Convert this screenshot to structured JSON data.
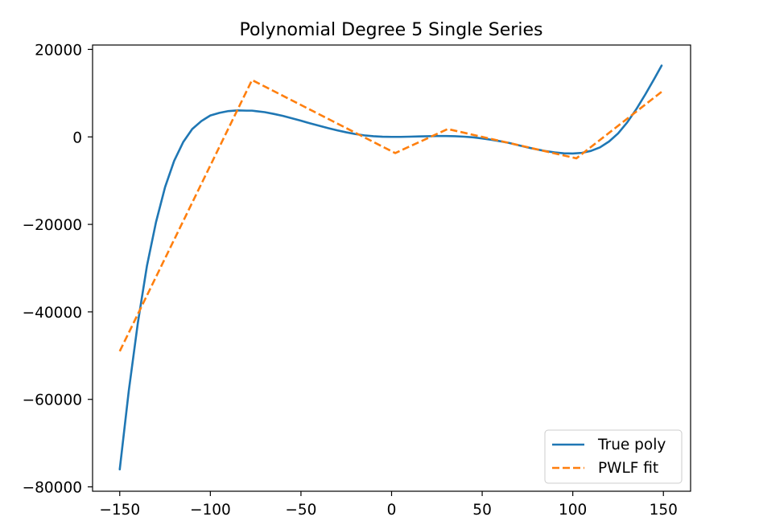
{
  "chart_data": {
    "type": "line",
    "title": "Polynomial Degree 5 Single Series",
    "xlabel": "",
    "ylabel": "",
    "xlim": [
      -165,
      165
    ],
    "ylim": [
      -81000,
      21000
    ],
    "xticks": [
      -150,
      -100,
      -50,
      0,
      50,
      100,
      150
    ],
    "xtick_labels": [
      "−150",
      "−100",
      "−50",
      "0",
      "50",
      "100",
      "150"
    ],
    "yticks": [
      20000,
      0,
      -20000,
      -40000,
      -60000,
      -80000
    ],
    "ytick_labels": [
      "20000",
      "0",
      "−20000",
      "−40000",
      "−60000",
      "−80000"
    ],
    "grid": false,
    "legend_position": "lower-right",
    "series": [
      {
        "name": "True poly",
        "color": "#1f77b4",
        "style": "solid",
        "x": [
          -150,
          -145,
          -140,
          -135,
          -130,
          -125,
          -120,
          -115,
          -110,
          -105,
          -100,
          -95,
          -90,
          -85,
          -80,
          -77,
          -75,
          -70,
          -65,
          -60,
          -55,
          -50,
          -45,
          -40,
          -35,
          -30,
          -25,
          -20,
          -15,
          -10,
          -5,
          0,
          5,
          10,
          15,
          20,
          25,
          30,
          35,
          40,
          45,
          50,
          55,
          60,
          65,
          70,
          75,
          80,
          85,
          90,
          95,
          100,
          105,
          110,
          115,
          120,
          125,
          130,
          135,
          140,
          145,
          149
        ],
        "y": [
          -76000,
          -58000,
          -42500,
          -29500,
          -19500,
          -11500,
          -5500,
          -1200,
          1800,
          3600,
          4900,
          5500,
          5900,
          6050,
          6000,
          6000,
          5900,
          5650,
          5250,
          4800,
          4250,
          3700,
          3100,
          2550,
          2000,
          1500,
          1050,
          650,
          350,
          150,
          30,
          0,
          0,
          50,
          100,
          150,
          200,
          200,
          150,
          50,
          -100,
          -350,
          -650,
          -1000,
          -1400,
          -1900,
          -2400,
          -2850,
          -3250,
          -3550,
          -3750,
          -3800,
          -3650,
          -3200,
          -2400,
          -1050,
          800,
          3300,
          6300,
          9700,
          13300,
          16300
        ]
      },
      {
        "name": "PWLF fit",
        "color": "#ff7f0e",
        "style": "dashed",
        "x": [
          -150,
          -77,
          2,
          31,
          102,
          149
        ],
        "y": [
          -49000,
          13000,
          -3700,
          1800,
          -4900,
          10300
        ]
      }
    ]
  }
}
